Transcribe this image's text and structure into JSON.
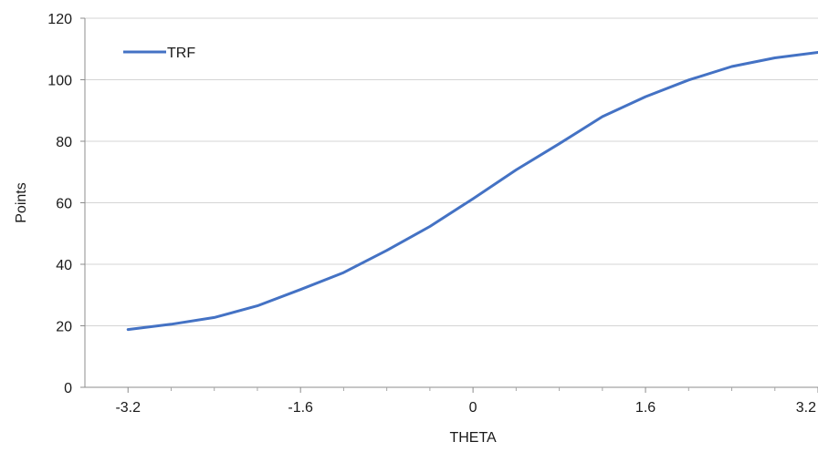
{
  "chart_data": {
    "type": "line",
    "xlabel": "THETA",
    "ylabel": "Points",
    "xlim": [
      -3.6,
      3.2
    ],
    "ylim": [
      0,
      120
    ],
    "x_ticks": [
      "-3.2",
      "-1.6",
      "0",
      "1.6",
      "3.2"
    ],
    "x_tick_values": [
      -3.2,
      -1.6,
      0,
      1.6,
      3.2
    ],
    "x_minor_ticks": [
      -2.8,
      -2.4,
      -2.0,
      -1.2,
      -0.8,
      -0.4,
      0.4,
      0.8,
      1.2,
      2.0,
      2.4,
      2.8
    ],
    "y_ticks": [
      "0",
      "20",
      "40",
      "60",
      "80",
      "100",
      "120"
    ],
    "y_tick_values": [
      0,
      20,
      40,
      60,
      80,
      100,
      120
    ],
    "grid": "horizontal",
    "legend": "top-left",
    "series": [
      {
        "name": "TRF",
        "color": "#4472c4",
        "x": [
          -3.2,
          -2.8,
          -2.4,
          -2.0,
          -1.6,
          -1.2,
          -0.8,
          -0.4,
          0.0,
          0.4,
          0.8,
          1.2,
          1.6,
          2.0,
          2.4,
          2.8,
          3.2
        ],
        "y": [
          18.8,
          20.5,
          22.7,
          26.5,
          31.8,
          37.3,
          44.5,
          52.3,
          61.3,
          70.7,
          79.2,
          88.0,
          94.5,
          99.9,
          104.3,
          107.1,
          108.9
        ]
      }
    ]
  }
}
